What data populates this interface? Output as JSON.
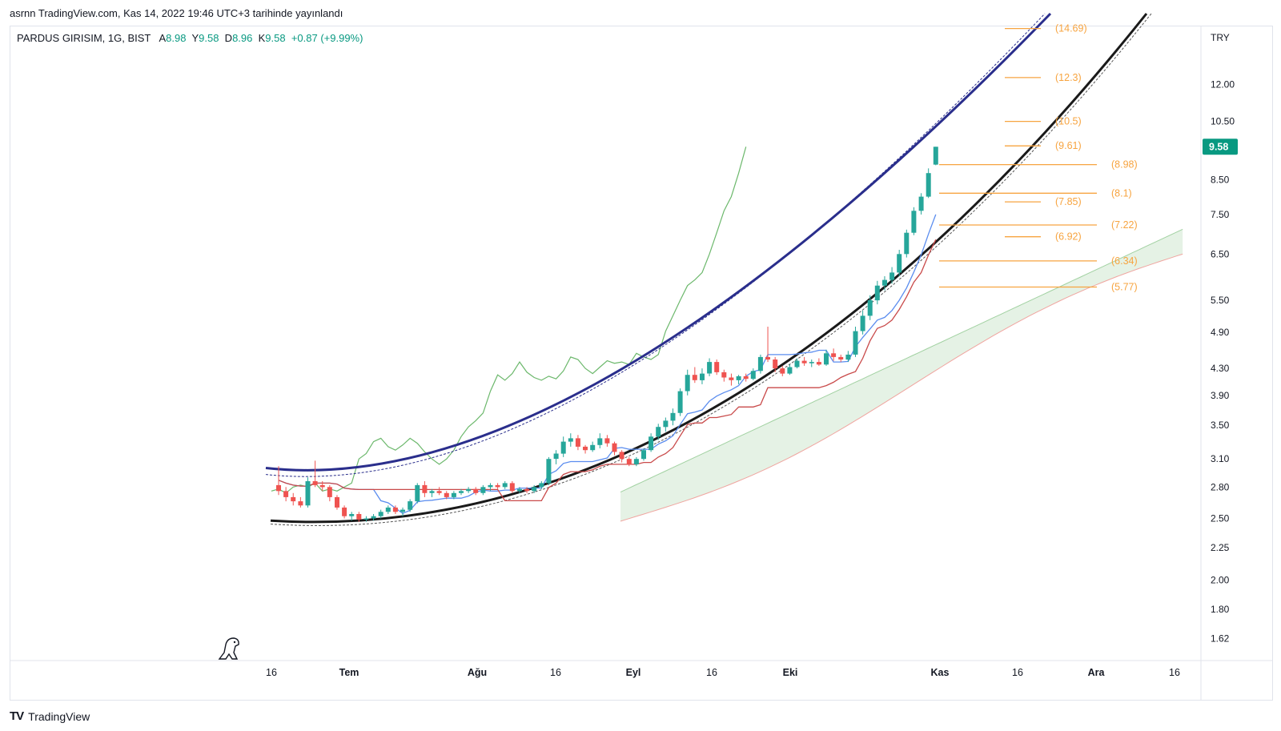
{
  "header": {
    "published_text": "asrnn TradingView.com, Kas 14, 2022 19:46 UTC+3 tarihinde yayınlandı"
  },
  "legend": {
    "symbol": "PARDUS GIRISIM, 1G, BIST",
    "open_label": "A",
    "open_value": "8.98",
    "high_label": "Y",
    "high_value": "9.58",
    "low_label": "D",
    "low_value": "8.96",
    "close_label": "K",
    "close_value": "9.58",
    "change": "+0.87 (+9.99%)"
  },
  "footer": {
    "brand": "TradingView",
    "logo": "TV"
  },
  "colors": {
    "up": "#26a69a",
    "down": "#ef5350",
    "upper_arc": "#2a2e8c",
    "lower_arc": "#1a1a1a",
    "fib": "#f7a440",
    "tenkan": "#5b8def",
    "kijun": "#c94a4a",
    "lagging": "#6cb86c",
    "cloud_fill": "#cfe8cf",
    "price_badge": "#089981"
  },
  "chart_data": {
    "type": "candlestick",
    "currency": "TRY",
    "scale": "log",
    "ylim": [
      1.5,
      14.8
    ],
    "y_ticks": [
      "12.00",
      "10.50",
      "8.50",
      "7.50",
      "6.50",
      "5.50",
      "4.90",
      "4.30",
      "3.90",
      "3.50",
      "3.10",
      "2.80",
      "2.50",
      "2.25",
      "2.00",
      "1.80",
      "1.62"
    ],
    "x_ticks": [
      "16",
      "Tem",
      "Ağu",
      "16",
      "Eyl",
      "16",
      "Eki",
      "Kas",
      "16",
      "Ara",
      "16"
    ],
    "last_price": "9.58",
    "fib_levels": [
      {
        "label": "(14.69)",
        "value": 14.69
      },
      {
        "label": "(12.3)",
        "value": 12.3
      },
      {
        "label": "(10.5)",
        "value": 10.5
      },
      {
        "label": "(9.61)",
        "value": 9.61
      },
      {
        "label": "(8.98)",
        "value": 8.98
      },
      {
        "label": "(8.1)",
        "value": 8.1
      },
      {
        "label": "(7.85)",
        "value": 7.85
      },
      {
        "label": "(7.22)",
        "value": 7.22
      },
      {
        "label": "(6.92)",
        "value": 6.92
      },
      {
        "label": "(6.34)",
        "value": 6.34
      },
      {
        "label": "(5.77)",
        "value": 5.77
      }
    ],
    "candles": [
      {
        "o": 2.82,
        "h": 3.02,
        "l": 2.72,
        "c": 2.76
      },
      {
        "o": 2.76,
        "h": 2.8,
        "l": 2.66,
        "c": 2.7
      },
      {
        "o": 2.7,
        "h": 2.74,
        "l": 2.62,
        "c": 2.66
      },
      {
        "o": 2.66,
        "h": 2.7,
        "l": 2.6,
        "c": 2.62
      },
      {
        "o": 2.62,
        "h": 2.9,
        "l": 2.6,
        "c": 2.86
      },
      {
        "o": 2.86,
        "h": 3.08,
        "l": 2.8,
        "c": 2.82
      },
      {
        "o": 2.82,
        "h": 2.86,
        "l": 2.76,
        "c": 2.8
      },
      {
        "o": 2.8,
        "h": 2.82,
        "l": 2.66,
        "c": 2.7
      },
      {
        "o": 2.7,
        "h": 2.72,
        "l": 2.58,
        "c": 2.6
      },
      {
        "o": 2.6,
        "h": 2.62,
        "l": 2.5,
        "c": 2.52
      },
      {
        "o": 2.52,
        "h": 2.56,
        "l": 2.48,
        "c": 2.54
      },
      {
        "o": 2.54,
        "h": 2.56,
        "l": 2.47,
        "c": 2.49
      },
      {
        "o": 2.49,
        "h": 2.52,
        "l": 2.47,
        "c": 2.5
      },
      {
        "o": 2.5,
        "h": 2.54,
        "l": 2.48,
        "c": 2.52
      },
      {
        "o": 2.52,
        "h": 2.58,
        "l": 2.5,
        "c": 2.56
      },
      {
        "o": 2.56,
        "h": 2.62,
        "l": 2.54,
        "c": 2.6
      },
      {
        "o": 2.6,
        "h": 2.62,
        "l": 2.54,
        "c": 2.56
      },
      {
        "o": 2.56,
        "h": 2.6,
        "l": 2.52,
        "c": 2.58
      },
      {
        "o": 2.58,
        "h": 2.68,
        "l": 2.56,
        "c": 2.66
      },
      {
        "o": 2.66,
        "h": 2.84,
        "l": 2.64,
        "c": 2.82
      },
      {
        "o": 2.82,
        "h": 2.86,
        "l": 2.7,
        "c": 2.74
      },
      {
        "o": 2.74,
        "h": 2.78,
        "l": 2.7,
        "c": 2.76
      },
      {
        "o": 2.76,
        "h": 2.8,
        "l": 2.72,
        "c": 2.74
      },
      {
        "o": 2.74,
        "h": 2.76,
        "l": 2.68,
        "c": 2.7
      },
      {
        "o": 2.7,
        "h": 2.76,
        "l": 2.68,
        "c": 2.74
      },
      {
        "o": 2.74,
        "h": 2.78,
        "l": 2.72,
        "c": 2.76
      },
      {
        "o": 2.76,
        "h": 2.8,
        "l": 2.74,
        "c": 2.78
      },
      {
        "o": 2.78,
        "h": 2.8,
        "l": 2.72,
        "c": 2.74
      },
      {
        "o": 2.74,
        "h": 2.82,
        "l": 2.72,
        "c": 2.8
      },
      {
        "o": 2.8,
        "h": 2.84,
        "l": 2.76,
        "c": 2.82
      },
      {
        "o": 2.82,
        "h": 2.84,
        "l": 2.78,
        "c": 2.8
      },
      {
        "o": 2.8,
        "h": 2.86,
        "l": 2.78,
        "c": 2.84
      },
      {
        "o": 2.84,
        "h": 2.86,
        "l": 2.74,
        "c": 2.76
      },
      {
        "o": 2.76,
        "h": 2.8,
        "l": 2.74,
        "c": 2.78
      },
      {
        "o": 2.78,
        "h": 2.8,
        "l": 2.74,
        "c": 2.76
      },
      {
        "o": 2.76,
        "h": 2.82,
        "l": 2.74,
        "c": 2.8
      },
      {
        "o": 2.8,
        "h": 2.86,
        "l": 2.78,
        "c": 2.84
      },
      {
        "o": 2.84,
        "h": 3.12,
        "l": 2.82,
        "c": 3.1
      },
      {
        "o": 3.1,
        "h": 3.2,
        "l": 3.04,
        "c": 3.16
      },
      {
        "o": 3.16,
        "h": 3.36,
        "l": 3.12,
        "c": 3.3
      },
      {
        "o": 3.3,
        "h": 3.4,
        "l": 3.24,
        "c": 3.34
      },
      {
        "o": 3.34,
        "h": 3.38,
        "l": 3.2,
        "c": 3.24
      },
      {
        "o": 3.24,
        "h": 3.26,
        "l": 3.16,
        "c": 3.2
      },
      {
        "o": 3.2,
        "h": 3.3,
        "l": 3.18,
        "c": 3.26
      },
      {
        "o": 3.26,
        "h": 3.4,
        "l": 3.22,
        "c": 3.34
      },
      {
        "o": 3.34,
        "h": 3.38,
        "l": 3.24,
        "c": 3.28
      },
      {
        "o": 3.28,
        "h": 3.3,
        "l": 3.14,
        "c": 3.18
      },
      {
        "o": 3.18,
        "h": 3.2,
        "l": 3.06,
        "c": 3.1
      },
      {
        "o": 3.1,
        "h": 3.12,
        "l": 3.02,
        "c": 3.04
      },
      {
        "o": 3.04,
        "h": 3.12,
        "l": 3.02,
        "c": 3.1
      },
      {
        "o": 3.1,
        "h": 3.22,
        "l": 3.08,
        "c": 3.2
      },
      {
        "o": 3.2,
        "h": 3.4,
        "l": 3.18,
        "c": 3.36
      },
      {
        "o": 3.36,
        "h": 3.52,
        "l": 3.32,
        "c": 3.48
      },
      {
        "o": 3.48,
        "h": 3.6,
        "l": 3.42,
        "c": 3.56
      },
      {
        "o": 3.56,
        "h": 3.72,
        "l": 3.5,
        "c": 3.66
      },
      {
        "o": 3.66,
        "h": 4.0,
        "l": 3.62,
        "c": 3.96
      },
      {
        "o": 3.96,
        "h": 4.28,
        "l": 3.9,
        "c": 4.2
      },
      {
        "o": 4.2,
        "h": 4.32,
        "l": 4.08,
        "c": 4.12
      },
      {
        "o": 4.12,
        "h": 4.3,
        "l": 4.06,
        "c": 4.22
      },
      {
        "o": 4.22,
        "h": 4.46,
        "l": 4.18,
        "c": 4.4
      },
      {
        "o": 4.4,
        "h": 4.44,
        "l": 4.2,
        "c": 4.24
      },
      {
        "o": 4.24,
        "h": 4.28,
        "l": 4.1,
        "c": 4.16
      },
      {
        "o": 4.16,
        "h": 4.22,
        "l": 4.04,
        "c": 4.12
      },
      {
        "o": 4.12,
        "h": 4.2,
        "l": 4.06,
        "c": 4.18
      },
      {
        "o": 4.18,
        "h": 4.22,
        "l": 4.1,
        "c": 4.14
      },
      {
        "o": 4.14,
        "h": 4.3,
        "l": 4.12,
        "c": 4.26
      },
      {
        "o": 4.26,
        "h": 4.52,
        "l": 4.22,
        "c": 4.48
      },
      {
        "o": 4.48,
        "h": 5.0,
        "l": 4.4,
        "c": 4.44
      },
      {
        "o": 4.44,
        "h": 4.48,
        "l": 4.24,
        "c": 4.3
      },
      {
        "o": 4.3,
        "h": 4.34,
        "l": 4.18,
        "c": 4.22
      },
      {
        "o": 4.22,
        "h": 4.36,
        "l": 4.2,
        "c": 4.32
      },
      {
        "o": 4.32,
        "h": 4.46,
        "l": 4.3,
        "c": 4.42
      },
      {
        "o": 4.42,
        "h": 4.48,
        "l": 4.34,
        "c": 4.38
      },
      {
        "o": 4.38,
        "h": 4.44,
        "l": 4.32,
        "c": 4.4
      },
      {
        "o": 4.4,
        "h": 4.46,
        "l": 4.34,
        "c": 4.36
      },
      {
        "o": 4.36,
        "h": 4.6,
        "l": 4.34,
        "c": 4.54
      },
      {
        "o": 4.54,
        "h": 4.62,
        "l": 4.42,
        "c": 4.48
      },
      {
        "o": 4.48,
        "h": 4.52,
        "l": 4.4,
        "c": 4.44
      },
      {
        "o": 4.44,
        "h": 4.58,
        "l": 4.4,
        "c": 4.52
      },
      {
        "o": 4.52,
        "h": 5.0,
        "l": 4.48,
        "c": 4.92
      },
      {
        "o": 4.92,
        "h": 5.3,
        "l": 4.86,
        "c": 5.2
      },
      {
        "o": 5.2,
        "h": 5.6,
        "l": 5.12,
        "c": 5.5
      },
      {
        "o": 5.5,
        "h": 5.9,
        "l": 5.42,
        "c": 5.8
      },
      {
        "o": 5.8,
        "h": 6.0,
        "l": 5.7,
        "c": 5.92
      },
      {
        "o": 5.92,
        "h": 6.2,
        "l": 5.84,
        "c": 6.08
      },
      {
        "o": 6.08,
        "h": 6.6,
        "l": 6.0,
        "c": 6.5
      },
      {
        "o": 6.5,
        "h": 7.1,
        "l": 6.42,
        "c": 7.02
      },
      {
        "o": 7.02,
        "h": 7.7,
        "l": 6.96,
        "c": 7.6
      },
      {
        "o": 7.6,
        "h": 8.1,
        "l": 7.5,
        "c": 8.0
      },
      {
        "o": 8.0,
        "h": 8.86,
        "l": 7.96,
        "c": 8.71
      },
      {
        "o": 8.98,
        "h": 9.58,
        "l": 8.96,
        "c": 9.58
      }
    ]
  }
}
